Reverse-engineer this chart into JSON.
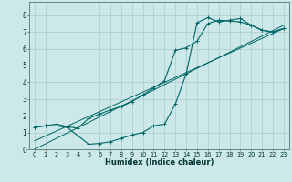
{
  "xlabel": "Humidex (Indice chaleur)",
  "bg_color": "#cce8e8",
  "grid_color": "#aacccc",
  "line_color": "#006666",
  "xlim": [
    -0.5,
    23.5
  ],
  "ylim": [
    0,
    8.8
  ],
  "xticks": [
    0,
    1,
    2,
    3,
    4,
    5,
    6,
    7,
    8,
    9,
    10,
    11,
    12,
    13,
    14,
    15,
    16,
    17,
    18,
    19,
    20,
    21,
    22,
    23
  ],
  "yticks": [
    0,
    1,
    2,
    3,
    4,
    5,
    6,
    7,
    8
  ],
  "curve1_x": [
    0,
    1,
    2,
    3,
    4,
    5,
    6,
    7,
    8,
    9,
    10,
    11,
    12,
    13,
    14,
    15,
    16,
    17,
    18,
    19,
    20,
    21,
    22,
    23
  ],
  "curve1_y": [
    1.3,
    1.4,
    1.4,
    1.3,
    0.8,
    0.3,
    0.35,
    0.45,
    0.65,
    0.85,
    1.0,
    1.4,
    1.5,
    2.7,
    4.5,
    7.55,
    7.85,
    7.6,
    7.7,
    7.8,
    7.4,
    7.1,
    7.0,
    7.2
  ],
  "curve2_x": [
    0,
    1,
    2,
    3,
    4,
    5,
    6,
    7,
    8,
    9,
    10,
    11,
    12,
    13,
    14,
    15,
    16,
    17,
    18,
    19,
    20,
    21,
    22,
    23
  ],
  "curve2_y": [
    1.3,
    1.4,
    1.5,
    1.35,
    1.25,
    1.85,
    2.1,
    2.35,
    2.55,
    2.85,
    3.25,
    3.65,
    4.1,
    5.9,
    6.05,
    6.45,
    7.5,
    7.7,
    7.65,
    7.6,
    7.4,
    7.1,
    7.0,
    7.2
  ],
  "line1_x": [
    0,
    23
  ],
  "line1_y": [
    0.0,
    7.4
  ],
  "line2_x": [
    0,
    23
  ],
  "line2_y": [
    0.5,
    7.2
  ],
  "xlabel_fontsize": 6.0,
  "tick_fontsize_x": 4.8,
  "tick_fontsize_y": 5.5
}
